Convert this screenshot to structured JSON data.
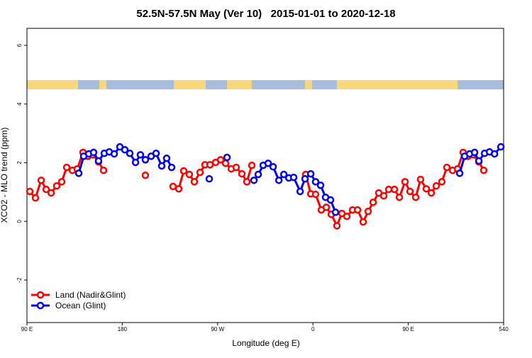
{
  "chart_data": {
    "type": "line",
    "title": "52.5N-57.5N May (Ver 10)   2015-01-01 to 2020-12-18",
    "x_label": "Longitude (deg E)",
    "y_label": "XCO2 - MLO trend (ppm)",
    "xlim": [
      90,
      540
    ],
    "xticks": [
      {
        "value": 90,
        "label": "90 E"
      },
      180,
      {
        "value": 270,
        "label": "90 W"
      },
      {
        "value": 360,
        "label": "0"
      },
      {
        "value": 450,
        "label": "90 E"
      },
      540
    ],
    "ylim": [
      -3.45,
      6.58
    ],
    "yticks": [
      -2,
      0,
      2,
      4,
      6
    ],
    "grid": false,
    "legend_position": "bottom-left",
    "series": [
      {
        "name": "Land (Nadir&Glint)",
        "color": "#ff0000",
        "x": [
          92.7,
          98.0,
          103.4,
          108.1,
          112.8,
          118.1,
          122.8,
          127.5,
          132.9,
          137.5,
          142.9,
          147.6,
          152.3,
          157.6,
          162.3,
          null,
          201.8,
          null,
          227.9,
          233.3,
          238.0,
          243.3,
          248.0,
          253.4,
          258.1,
          262.8,
          268.1,
          272.8,
          277.5,
          282.9,
          287.5,
          292.9,
          297.6,
          302.3,
          null,
          353.2,
          357.9,
          362.5,
          367.9,
          372.6,
          377.3,
          382.6,
          387.3,
          392.0,
          397.4,
          402.1,
          407.4,
          412.1,
          416.8,
          422.1,
          426.8,
          431.5,
          436.9,
          441.6,
          446.9,
          451.6,
          457.0,
          461.6,
          467.0,
          471.7,
          476.4,
          481.7,
          486.4,
          491.8,
          496.5,
          501.8,
          506.5,
          511.2,
          516.6,
          521.2
        ],
        "values": [
          1.02,
          0.8,
          1.4,
          1.09,
          0.97,
          1.21,
          1.35,
          1.84,
          1.74,
          1.79,
          2.35,
          2.22,
          2.27,
          2.03,
          1.74,
          null,
          1.57,
          null,
          1.19,
          1.11,
          1.72,
          1.6,
          1.35,
          1.67,
          1.93,
          1.93,
          2.01,
          2.1,
          1.98,
          1.79,
          1.84,
          1.62,
          1.35,
          1.91,
          null,
          1.6,
          0.94,
          0.92,
          0.39,
          0.48,
          0.24,
          -0.15,
          0.27,
          0.17,
          0.39,
          0.39,
          -0.02,
          0.34,
          0.65,
          0.97,
          0.87,
          1.09,
          1.09,
          0.82,
          1.35,
          1.02,
          0.82,
          1.43,
          1.11,
          0.97,
          1.21,
          1.35,
          1.84,
          1.74,
          1.79,
          2.35,
          2.22,
          2.27,
          2.03,
          1.74
        ]
      },
      {
        "name": "Ocean (Glint)",
        "color": "#0000ee",
        "x": [
          138.9,
          143.6,
          148.3,
          152.9,
          157.6,
          163.0,
          167.7,
          172.4,
          177.7,
          182.4,
          187.1,
          192.5,
          197.1,
          201.8,
          207.2,
          211.9,
          217.2,
          221.9,
          226.6,
          null,
          262.1,
          null,
          278.9,
          null,
          304.3,
          308.3,
          313.0,
          317.7,
          322.4,
          327.8,
          332.5,
          337.2,
          341.8,
          347.9,
          352.5,
          357.9,
          362.5,
          367.2,
          371.9,
          376.6,
          381.3,
          null,
          498.5,
          503.2,
          507.9,
          512.6,
          516.6,
          522.0,
          526.7,
          531.4,
          537.4
        ],
        "values": [
          1.64,
          2.22,
          2.3,
          2.35,
          2.06,
          2.32,
          2.37,
          2.3,
          2.54,
          2.44,
          2.32,
          2.01,
          2.27,
          2.1,
          2.22,
          2.32,
          1.89,
          2.15,
          1.84,
          null,
          1.45,
          null,
          2.18,
          null,
          1.4,
          1.6,
          1.91,
          1.98,
          1.86,
          1.4,
          1.6,
          1.48,
          1.5,
          1.02,
          1.45,
          1.62,
          1.35,
          1.23,
          0.82,
          0.73,
          0.31,
          null,
          1.64,
          2.22,
          2.3,
          2.35,
          2.06,
          2.32,
          2.37,
          2.3,
          2.54
        ]
      }
    ]
  }
}
